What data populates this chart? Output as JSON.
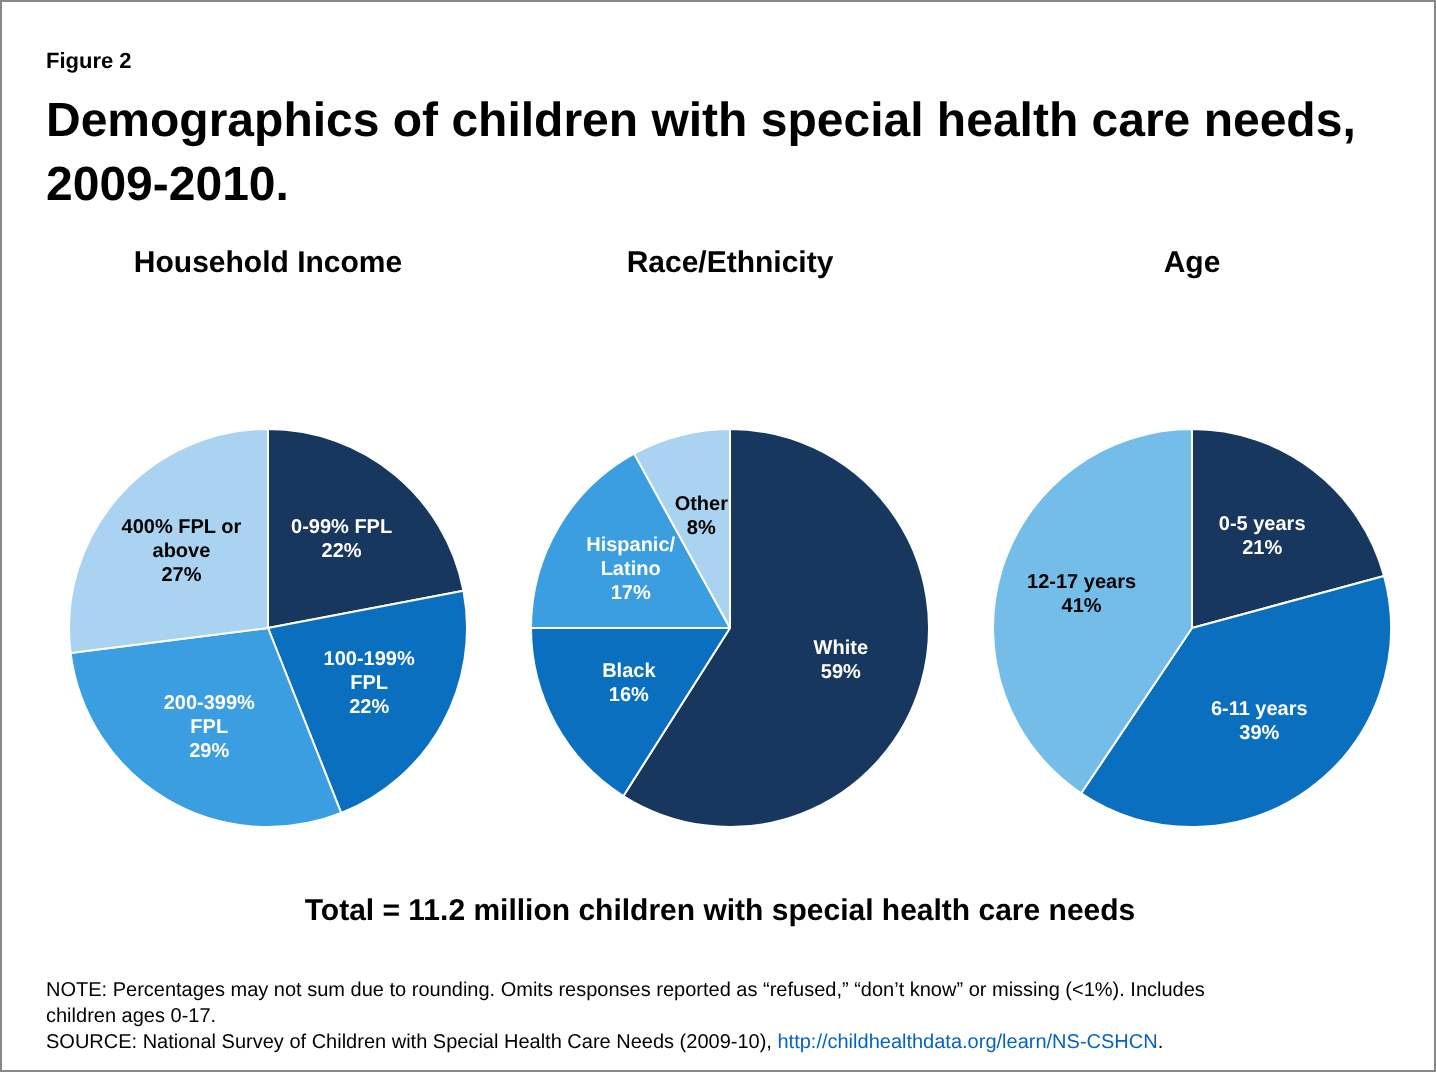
{
  "chart_data": [
    {
      "type": "other",
      "title": "Demographics of children with special health care needs, 2009-2010.",
      "annotations": [
        "Figure 2"
      ]
    },
    {
      "type": "pie",
      "title": "Household Income",
      "categories": [
        "0-99% FPL",
        "100-199% FPL",
        "200-399% FPL",
        "400% FPL or above"
      ],
      "values": [
        22,
        22,
        29,
        27
      ],
      "colors": [
        "#17375e",
        "#0b6fc0",
        "#3a9ee0",
        "#a9d3f0"
      ],
      "value_labels": [
        "22%",
        "22%",
        "29%",
        "27%"
      ]
    },
    {
      "type": "pie",
      "title": "Race/Ethnicity",
      "categories": [
        "White",
        "Black",
        "Hispanic/ Latino",
        "Other"
      ],
      "values": [
        59,
        16,
        17,
        8
      ],
      "colors": [
        "#17375e",
        "#0b6fc0",
        "#3a9ee0",
        "#a9d3f0"
      ],
      "value_labels": [
        "59%",
        "16%",
        "17%",
        "8%"
      ]
    },
    {
      "type": "pie",
      "title": "Age",
      "categories": [
        "0-5 years",
        "6-11 years",
        "12-17 years"
      ],
      "values": [
        21,
        39,
        41
      ],
      "colors": [
        "#17375e",
        "#0b6fc0",
        "#74bde9"
      ],
      "value_labels": [
        "21%",
        "39%",
        "41%"
      ]
    },
    {
      "type": "other",
      "annotations": [
        "Total = 11.2 million children with special health care needs",
        "NOTE:  Percentages may not sum due to rounding. Omits responses reported as “refused,” “don’t know” or missing (<1%). Includes children ages 0-17.",
        "SOURCE:  National Survey of Children with Special Health Care Needs (2009-10), http://childhealthdata.org/learn/NS-CSHCN."
      ]
    }
  ]
}
